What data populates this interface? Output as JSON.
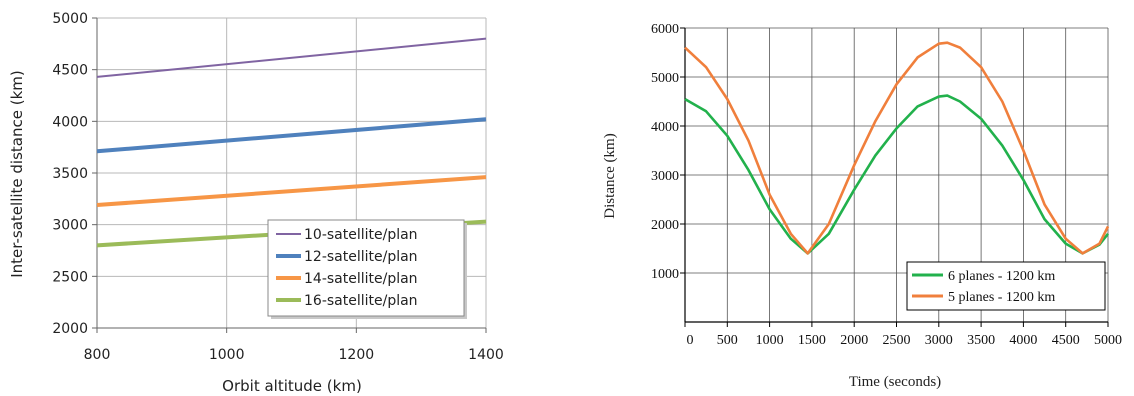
{
  "chart_data": [
    {
      "type": "line",
      "xlabel": "Orbit altitude (km)",
      "ylabel": "Inter-satellite distance (km)",
      "xlim": [
        800,
        1400
      ],
      "ylim": [
        2000,
        5000
      ],
      "xticks": [
        "800",
        "1000",
        "1200",
        "1400"
      ],
      "yticks": [
        "2000",
        "2500",
        "3000",
        "3500",
        "4000",
        "4500",
        "5000"
      ],
      "grid": true,
      "legend_position": "bottom-right",
      "series": [
        {
          "name": "10-satellite/plan",
          "color": "#8064a2",
          "x": [
            800,
            1400
          ],
          "values": [
            4430,
            4800
          ]
        },
        {
          "name": "12-satellite/plan",
          "color": "#4f81bd",
          "x": [
            800,
            1400
          ],
          "values": [
            3710,
            4020
          ]
        },
        {
          "name": "14-satellite/plan",
          "color": "#f79646",
          "x": [
            800,
            1400
          ],
          "values": [
            3190,
            3460
          ]
        },
        {
          "name": "16-satellite/plan",
          "color": "#9bbb59",
          "x": [
            800,
            1400
          ],
          "values": [
            2800,
            3030
          ]
        }
      ]
    },
    {
      "type": "line",
      "xlabel": "Time (seconds)",
      "ylabel": "Distance (km)",
      "xlim": [
        0,
        5000
      ],
      "ylim": [
        0,
        6000
      ],
      "xticks": [
        "0",
        "500",
        "1000",
        "1500",
        "2000",
        "2500",
        "3000",
        "3500",
        "4000",
        "4500",
        "5000"
      ],
      "yticks": [
        "1000",
        "2000",
        "3000",
        "4000",
        "5000",
        "6000"
      ],
      "grid": true,
      "legend_position": "bottom-right",
      "series": [
        {
          "name": "6 planes - 1200 km",
          "color": "#22b14c",
          "x": [
            0,
            250,
            500,
            750,
            1000,
            1250,
            1450,
            1700,
            2000,
            2250,
            2500,
            2750,
            3000,
            3100,
            3250,
            3500,
            3750,
            4000,
            4250,
            4500,
            4700,
            4900,
            5000
          ],
          "values": [
            4550,
            4300,
            3800,
            3100,
            2300,
            1700,
            1400,
            1800,
            2700,
            3400,
            3950,
            4400,
            4600,
            4620,
            4500,
            4150,
            3600,
            2900,
            2100,
            1600,
            1400,
            1580,
            1800
          ]
        },
        {
          "name": "5 planes - 1200 km",
          "color": "#f07f3c",
          "x": [
            0,
            250,
            500,
            750,
            1000,
            1250,
            1450,
            1700,
            2000,
            2250,
            2500,
            2750,
            3000,
            3100,
            3250,
            3500,
            3750,
            4000,
            4250,
            4500,
            4700,
            4900,
            5000
          ],
          "values": [
            5600,
            5200,
            4550,
            3700,
            2600,
            1800,
            1400,
            2000,
            3200,
            4100,
            4850,
            5400,
            5680,
            5700,
            5600,
            5200,
            4500,
            3500,
            2400,
            1700,
            1400,
            1600,
            1950
          ]
        }
      ]
    }
  ]
}
